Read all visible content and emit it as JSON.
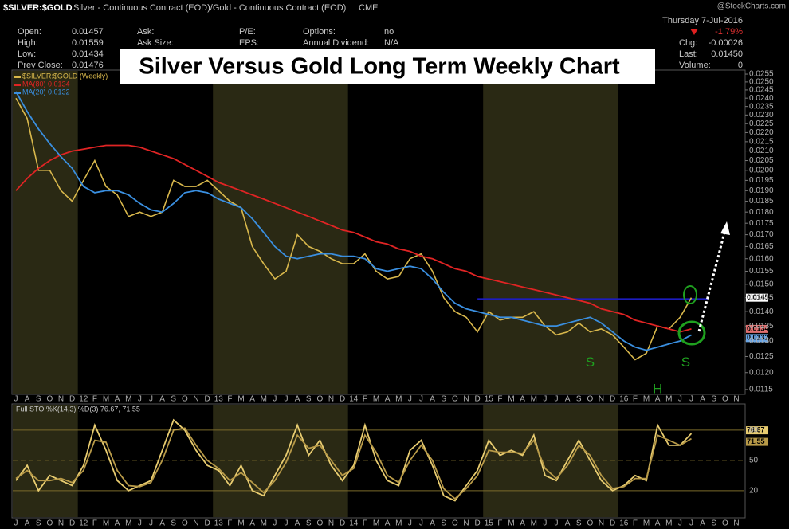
{
  "header": {
    "symbol": "$SILVER:$GOLD",
    "description": "Silver - Continuous Contract (EOD)/Gold - Continuous Contract (EOD)",
    "exchange": "CME",
    "watermark": "@StockCharts.com",
    "date": "Thursday 7-Jul-2016",
    "stats": [
      [
        {
          "label": "Open:",
          "value": "0.01457"
        },
        {
          "label": "High:",
          "value": "0.01559"
        },
        {
          "label": "Low:",
          "value": "0.01434"
        },
        {
          "label": "Prev Close:",
          "value": "0.01476"
        }
      ],
      [
        {
          "label": "Ask:"
        },
        {
          "label": "Ask Size:"
        }
      ],
      [
        {
          "label": "P/E:"
        },
        {
          "label": "EPS:"
        }
      ],
      [
        {
          "label": "Options:",
          "value": "no"
        },
        {
          "label": "Annual Dividend:",
          "value": "N/A"
        }
      ]
    ],
    "change": "-1.79%",
    "quote": [
      {
        "label": "Chg:",
        "value": "-0.00026"
      },
      {
        "label": "Last:",
        "value": "0.01450"
      },
      {
        "label": "Volume:",
        "value": "0"
      }
    ]
  },
  "chart_data": [
    {
      "type": "line",
      "title": "Silver Versus Gold Long Term Weekly Chart",
      "log": true,
      "categories": [
        "J",
        "A",
        "S",
        "O",
        "N",
        "D",
        "12",
        "F",
        "M",
        "A",
        "M",
        "J",
        "J",
        "A",
        "S",
        "O",
        "N",
        "D",
        "13",
        "F",
        "M",
        "A",
        "M",
        "J",
        "J",
        "A",
        "S",
        "O",
        "N",
        "D",
        "14",
        "F",
        "M",
        "A",
        "M",
        "J",
        "J",
        "A",
        "S",
        "O",
        "N",
        "D",
        "15",
        "F",
        "M",
        "A",
        "M",
        "J",
        "J",
        "A",
        "S",
        "O",
        "N",
        "D",
        "16",
        "F",
        "M",
        "A",
        "M",
        "J",
        "J",
        "A",
        "S",
        "O",
        "N"
      ],
      "ylim": [
        0.01136,
        0.02576
      ],
      "yticks": [
        0.0115,
        {
          "value": 0.012,
          "label": "0.0120"
        },
        0.0125,
        {
          "value": 0.013,
          "label": "0.0130"
        },
        0.0135,
        {
          "value": 0.014,
          "label": "0.0140"
        },
        0.0145,
        {
          "value": 0.015,
          "label": "0.0150"
        },
        0.0155,
        {
          "value": 0.016,
          "label": "0.0160"
        },
        0.0165,
        {
          "value": 0.017,
          "label": "0.0170"
        },
        0.0175,
        {
          "value": 0.018,
          "label": "0.0180"
        },
        0.0185,
        {
          "value": 0.019,
          "label": "0.0190"
        },
        0.0195,
        {
          "value": 0.02,
          "label": "0.0200"
        },
        0.0205,
        {
          "value": 0.021,
          "label": "0.0210"
        },
        0.0215,
        {
          "value": 0.022,
          "label": "0.0220"
        },
        0.0225,
        {
          "value": 0.023,
          "label": "0.0230"
        },
        0.0235,
        {
          "value": 0.024,
          "label": "0.0240"
        },
        0.0245,
        {
          "value": 0.025,
          "label": "0.0250"
        },
        0.0255
      ],
      "series": [
        {
          "name": "$SILVER:$GOLD (Weekly)",
          "color": "#d9b84c",
          "values": [
            0.024,
            0.0228,
            0.02,
            0.02,
            0.019,
            0.0185,
            0.0195,
            0.0205,
            0.0192,
            0.0188,
            0.0178,
            0.018,
            0.0178,
            0.018,
            0.0195,
            0.0192,
            0.0192,
            0.0195,
            0.019,
            0.0185,
            0.0182,
            0.0165,
            0.0158,
            0.0152,
            0.0155,
            0.017,
            0.0165,
            0.0163,
            0.016,
            0.0158,
            0.0158,
            0.0162,
            0.0155,
            0.0152,
            0.0153,
            0.016,
            0.0162,
            0.0155,
            0.0145,
            0.014,
            0.0138,
            0.0133,
            0.014,
            0.0137,
            0.0138,
            0.0138,
            0.014,
            0.0135,
            0.0132,
            0.0133,
            0.0136,
            0.0133,
            0.0134,
            0.0132,
            0.0128,
            0.0124,
            0.0126,
            0.0135,
            0.0134,
            0.0138,
            0.0145,
            null,
            null,
            null,
            null
          ]
        },
        {
          "name": "MA(80) 0.0134",
          "color": "#e02424",
          "values": [
            0.019,
            0.0196,
            0.0201,
            0.0205,
            0.0208,
            0.021,
            0.0211,
            0.0212,
            0.0213,
            0.0213,
            0.0213,
            0.0212,
            0.021,
            0.0208,
            0.0206,
            0.0203,
            0.02,
            0.0197,
            0.0194,
            0.0192,
            0.019,
            0.0188,
            0.0186,
            0.0184,
            0.0182,
            0.018,
            0.0178,
            0.0176,
            0.0174,
            0.0172,
            0.0171,
            0.0169,
            0.0167,
            0.0166,
            0.0164,
            0.0163,
            0.0161,
            0.016,
            0.0158,
            0.0156,
            0.0155,
            0.0153,
            0.0152,
            0.0151,
            0.015,
            0.0149,
            0.0148,
            0.0147,
            0.0146,
            0.0145,
            0.0144,
            0.0143,
            0.0141,
            0.014,
            0.0139,
            0.0137,
            0.0136,
            0.0135,
            0.0134,
            0.0133,
            0.0134,
            null,
            null,
            null,
            null
          ]
        },
        {
          "name": "MA(20) 0.0132",
          "color": "#3a8fe0",
          "values": [
            0.0244,
            0.0232,
            0.0222,
            0.0214,
            0.0207,
            0.0201,
            0.0192,
            0.0189,
            0.019,
            0.019,
            0.0188,
            0.0184,
            0.0181,
            0.018,
            0.0184,
            0.0189,
            0.019,
            0.0189,
            0.0186,
            0.0184,
            0.0182,
            0.0177,
            0.0171,
            0.0165,
            0.0161,
            0.016,
            0.0161,
            0.0162,
            0.0162,
            0.0161,
            0.0161,
            0.016,
            0.0156,
            0.0155,
            0.0156,
            0.0157,
            0.0156,
            0.0152,
            0.0147,
            0.0143,
            0.0141,
            0.014,
            0.0139,
            0.0138,
            0.0138,
            0.0137,
            0.0136,
            0.0135,
            0.0135,
            0.0136,
            0.0137,
            0.0138,
            0.0136,
            0.0133,
            0.013,
            0.0128,
            0.0127,
            0.0128,
            0.0129,
            0.013,
            0.0132,
            null,
            null,
            null,
            null
          ]
        }
      ],
      "hline": {
        "value": 0.01445,
        "color": "#1c1cc0"
      },
      "tags": [
        {
          "value": 0.0145,
          "color": "#ffffff"
        },
        {
          "value": 0.0134,
          "color": "#e07070"
        },
        {
          "value": 0.0132,
          "color": "#6aa6e6"
        }
      ],
      "annotations": [
        {
          "text": "S",
          "x": 51,
          "y": 0.0123
        },
        {
          "text": "H",
          "x": 57,
          "y": 0.0115
        },
        {
          "text": "S",
          "x": 59.5,
          "y": 0.0123
        }
      ],
      "shading_color": "#2a2914"
    },
    {
      "type": "line",
      "title": "Full STO %K(14,3) %D(3) 76.67, 71.55",
      "categories": [
        "J",
        "A",
        "S",
        "O",
        "N",
        "D",
        "12",
        "F",
        "M",
        "A",
        "M",
        "J",
        "J",
        "A",
        "S",
        "O",
        "N",
        "D",
        "13",
        "F",
        "M",
        "A",
        "M",
        "J",
        "J",
        "A",
        "S",
        "O",
        "N",
        "D",
        "14",
        "F",
        "M",
        "A",
        "M",
        "J",
        "J",
        "A",
        "S",
        "O",
        "N",
        "D",
        "15",
        "F",
        "M",
        "A",
        "M",
        "J",
        "J",
        "A",
        "S",
        "O",
        "N",
        "D",
        "16",
        "F",
        "M",
        "A",
        "M",
        "J",
        "J",
        "A",
        "S",
        "O",
        "N"
      ],
      "ylim": [
        -7,
        106
      ],
      "yticks": [
        20,
        50,
        80
      ],
      "series": [
        {
          "color": "#e8cc70",
          "values": [
            30,
            45,
            20,
            35,
            30,
            25,
            45,
            85,
            60,
            30,
            20,
            25,
            30,
            60,
            90,
            80,
            60,
            45,
            40,
            25,
            45,
            20,
            15,
            35,
            55,
            85,
            55,
            70,
            45,
            30,
            45,
            85,
            50,
            30,
            25,
            60,
            70,
            45,
            15,
            10,
            25,
            40,
            70,
            55,
            60,
            55,
            75,
            35,
            30,
            50,
            70,
            50,
            30,
            20,
            25,
            35,
            30,
            85,
            65,
            65,
            76.67,
            null,
            null,
            null,
            null
          ]
        },
        {
          "color": "#b89a48",
          "values": [
            32,
            40,
            30,
            30,
            32,
            28,
            40,
            70,
            68,
            40,
            25,
            24,
            28,
            50,
            80,
            82,
            65,
            50,
            42,
            30,
            38,
            28,
            18,
            30,
            48,
            75,
            62,
            65,
            50,
            35,
            42,
            75,
            58,
            35,
            28,
            50,
            65,
            50,
            22,
            12,
            22,
            35,
            60,
            58,
            58,
            57,
            70,
            42,
            32,
            45,
            65,
            55,
            35,
            22,
            24,
            32,
            32,
            75,
            70,
            65,
            71.55,
            null,
            null,
            null,
            null
          ]
        }
      ],
      "tags": [
        {
          "value": 76.67,
          "color": "#e8cc70"
        },
        {
          "value": 71.55,
          "color": "#b89a48"
        }
      ],
      "shading_color": "#2a2914"
    }
  ]
}
